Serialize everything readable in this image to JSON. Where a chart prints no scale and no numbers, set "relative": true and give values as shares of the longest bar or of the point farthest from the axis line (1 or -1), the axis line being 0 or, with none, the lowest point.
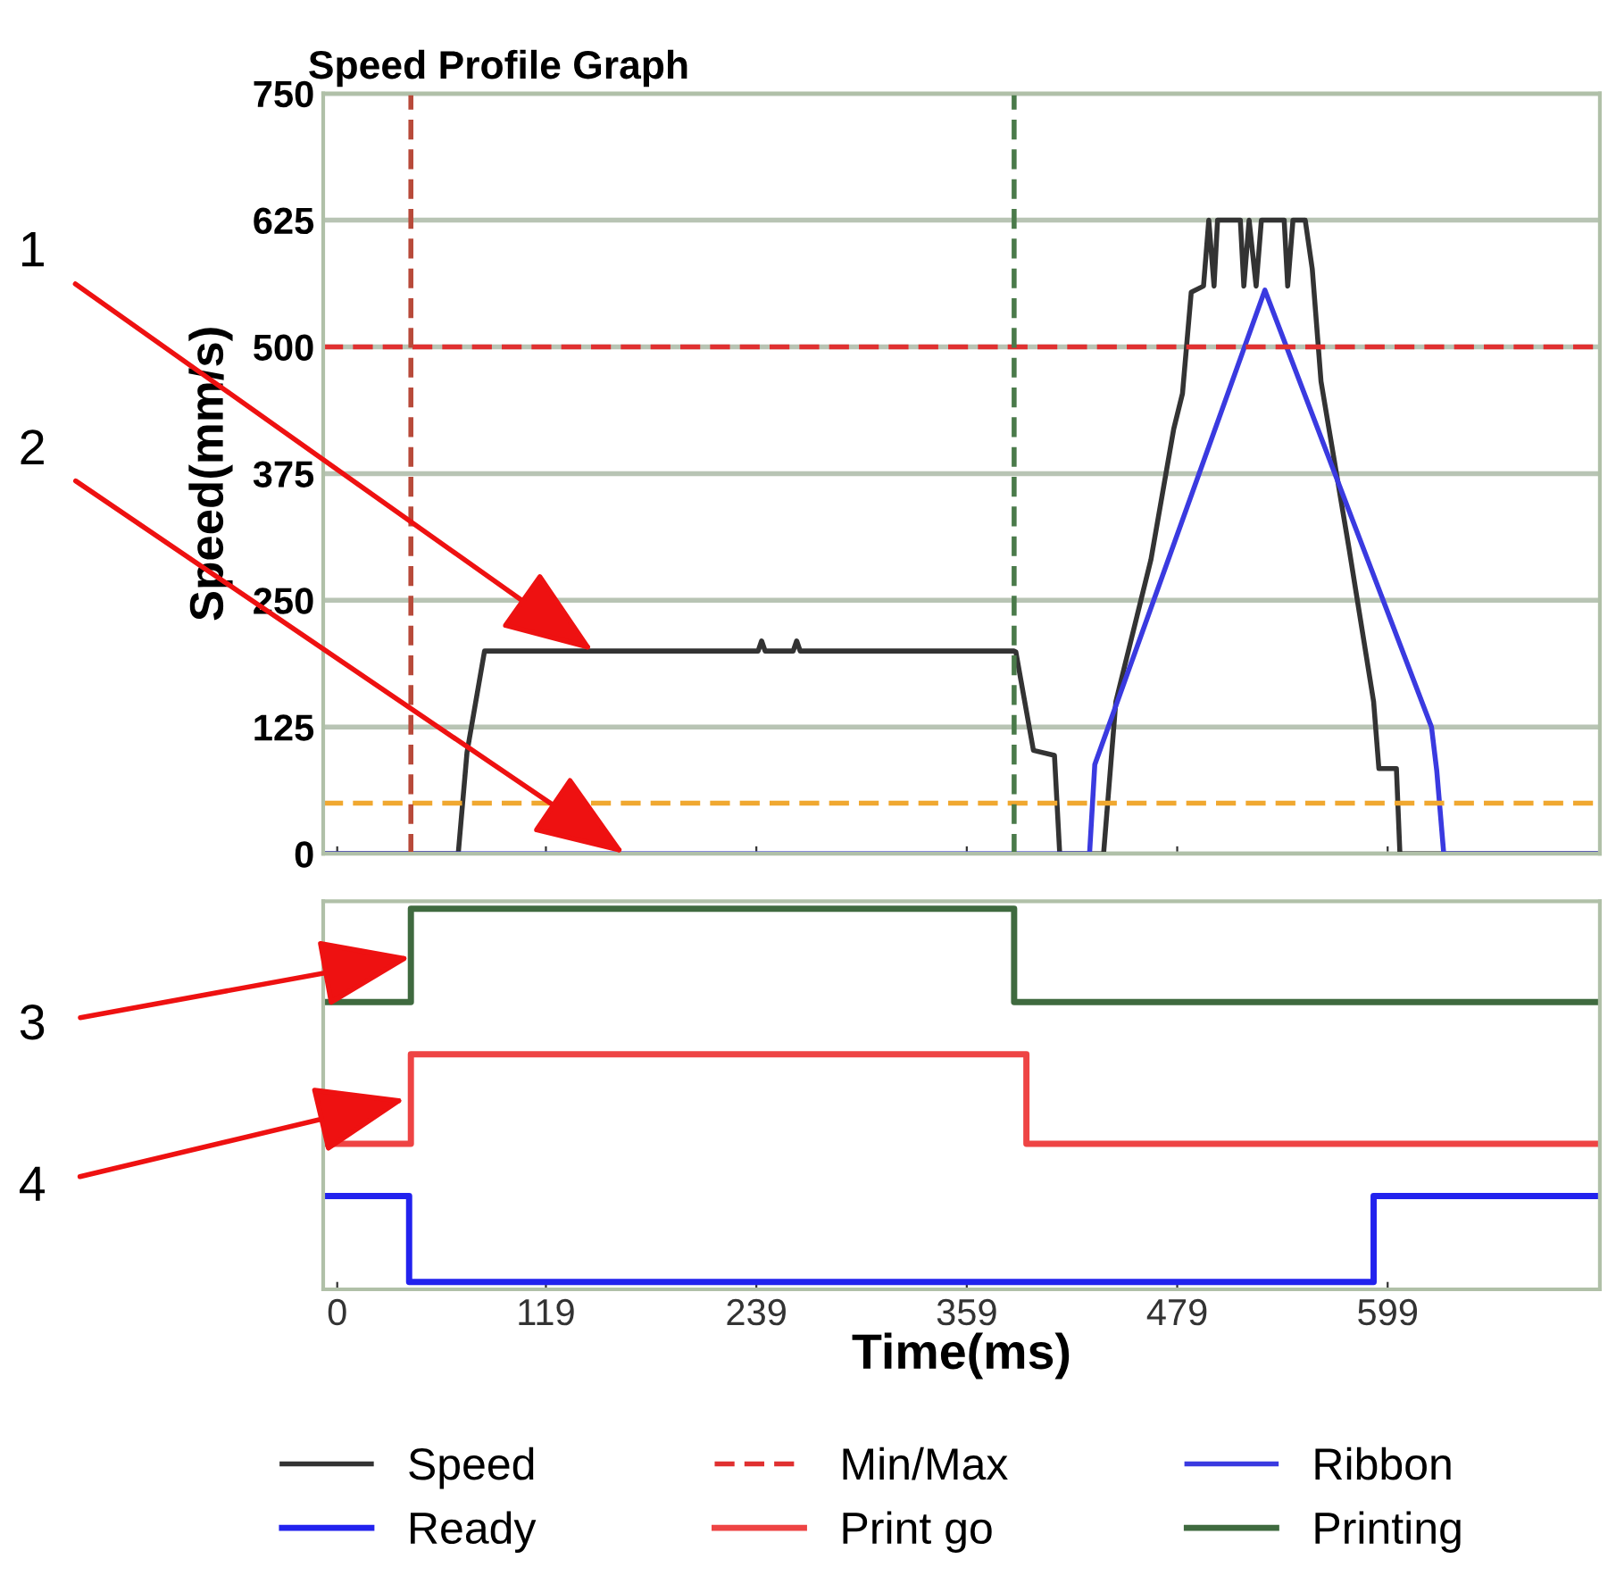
{
  "chart_data": [
    {
      "type": "line",
      "title": "Speed Profile Graph",
      "ylabel": "Speed(mm/s)",
      "xlim": [
        -8,
        720
      ],
      "xticks": [
        0,
        119,
        239,
        359,
        479,
        599
      ],
      "ylim": [
        0,
        750
      ],
      "yticks": [
        0,
        125,
        250,
        375,
        500,
        625,
        750
      ],
      "tick_labels": "y",
      "grid": "y",
      "legend": "bottom",
      "series": [
        {
          "name": "Speed",
          "color": "#333333",
          "x": [
            -8,
            69,
            74,
            84,
            240,
            242,
            244,
            260,
            262,
            264,
            386,
            387,
            397,
            409,
            412,
            437,
            444,
            464,
            477,
            482,
            487,
            494,
            497,
            500,
            502,
            515,
            517,
            520,
            524,
            527,
            540,
            542,
            545,
            552,
            556,
            561,
            577,
            591,
            594,
            604,
            606,
            720
          ],
          "values": [
            0,
            0,
            100,
            200,
            200,
            210,
            200,
            200,
            210,
            200,
            200,
            199,
            102,
            97,
            0,
            0,
            150,
            290,
            419,
            454,
            554,
            560,
            625,
            560,
            625,
            625,
            560,
            625,
            560,
            625,
            625,
            560,
            625,
            625,
            577,
            466,
            301,
            150,
            84,
            84,
            0,
            0
          ]
        },
        {
          "name": "Ribbon",
          "color": "#3a3ae0",
          "x": [
            -8,
            429,
            432,
            529,
            624,
            627,
            631,
            720
          ],
          "values": [
            0,
            0,
            88,
            556,
            125,
            82,
            0,
            0
          ]
        }
      ],
      "ref_lines": [
        {
          "axis": "y",
          "value": 500,
          "label": "Min/Max",
          "color": "#e03030",
          "line_style": "dashed"
        },
        {
          "axis": "y",
          "value": 50,
          "color": "#f0a830",
          "line_style": "dashed"
        },
        {
          "axis": "x",
          "value": 42,
          "color": "#b84a3a",
          "line_style": "dashed"
        },
        {
          "axis": "x",
          "value": 386,
          "color": "#4a7a4a",
          "line_style": "dashed"
        }
      ],
      "annotations": [
        {
          "text": "1",
          "x": 146,
          "y": 200
        },
        {
          "text": "2",
          "x": 164,
          "y": 0
        }
      ]
    },
    {
      "type": "step",
      "xlabel": "Time(ms)",
      "relative": true,
      "xlim": [
        -8,
        720
      ],
      "xticks": [
        0,
        119,
        239,
        359,
        479,
        599
      ],
      "tick_labels": "x",
      "legend": "bottom",
      "series": [
        {
          "name": "Ready",
          "color": "#2222ee",
          "x": [
            -8,
            41,
            591,
            720
          ],
          "values": [
            0.23,
            0,
            0.23,
            0.23
          ]
        },
        {
          "name": "Print go",
          "color": "#ee4444",
          "x": [
            -8,
            42,
            393,
            720
          ],
          "values": [
            0.37,
            0.61,
            0.37,
            0.37
          ]
        },
        {
          "name": "Printing",
          "color": "#3f6a3f",
          "x": [
            -8,
            42,
            386,
            720
          ],
          "values": [
            0.75,
            1,
            0.75,
            0.75
          ]
        }
      ],
      "annotations": [
        {
          "text": "3",
          "x": 42,
          "y": 0.87
        },
        {
          "text": "4",
          "x": 39,
          "y": 0.49
        }
      ]
    }
  ]
}
